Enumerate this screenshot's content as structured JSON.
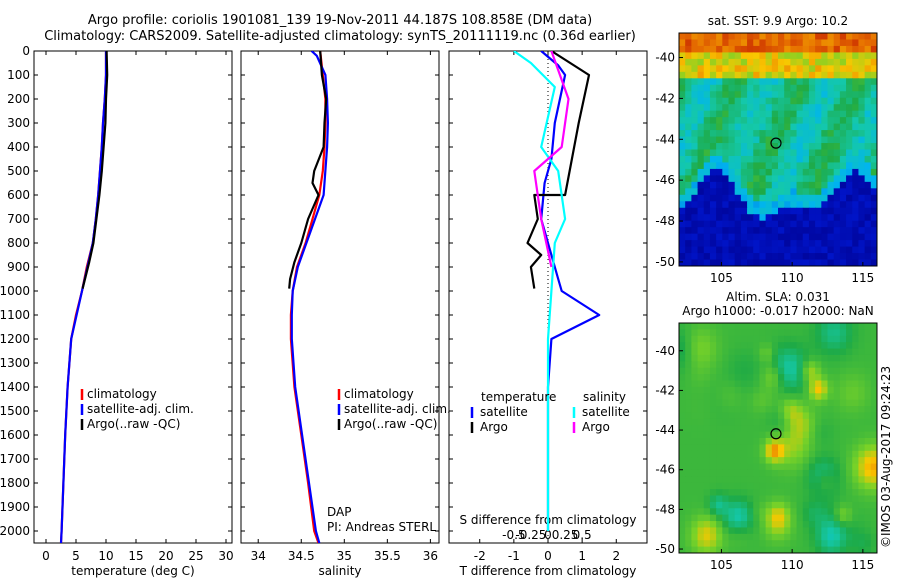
{
  "title_line1": "Argo profile: coriolis 1901081_139 19-Nov-2011 44.187S 108.858E (DM data)",
  "title_line2": "Climatology: CARS2009. Satellite-adjusted climatology: synTS_20111119.nc (0.36d earlier)",
  "timestamp": "©IMOS 03-Aug-2017 09:24:23",
  "colors": {
    "climatology": "#ff0000",
    "satellite": "#0000ff",
    "argo": "#000000",
    "sal_satellite": "#00ffff",
    "sal_argo": "#ff00ff"
  },
  "chart_data": [
    {
      "type": "line",
      "xlabel": "temperature (deg C)",
      "xlim": [
        -2,
        31
      ],
      "xticks": [
        0,
        5,
        10,
        15,
        20,
        25,
        30
      ],
      "ylim": [
        2050,
        0
      ],
      "yticks": [
        0,
        100,
        200,
        300,
        400,
        500,
        600,
        700,
        800,
        900,
        1000,
        1100,
        1200,
        1300,
        1400,
        1500,
        1600,
        1700,
        1800,
        1900,
        2000
      ],
      "legend": [
        "climatology",
        "satellite-adj. clim.",
        "Argo(..raw -QC)"
      ],
      "series": [
        {
          "name": "climatology",
          "color": "#ff0000",
          "x": [
            10.0,
            10.0,
            9.8,
            9.5,
            9.3,
            9.0,
            8.7,
            8.3,
            7.8,
            6.8,
            6.0,
            5.0,
            4.2,
            3.6,
            3.2,
            2.9,
            2.6,
            2.5
          ],
          "y": [
            0,
            100,
            200,
            300,
            400,
            500,
            600,
            700,
            800,
            900,
            1000,
            1100,
            1200,
            1400,
            1600,
            1800,
            2000,
            2050
          ]
        },
        {
          "name": "satellite-adj. clim.",
          "color": "#0000ff",
          "x": [
            10.0,
            10.0,
            9.8,
            9.5,
            9.3,
            9.0,
            8.7,
            8.3,
            7.8,
            6.9,
            6.0,
            5.1,
            4.2,
            3.6,
            3.2,
            2.9,
            2.6,
            2.5
          ],
          "y": [
            0,
            100,
            200,
            300,
            400,
            500,
            600,
            700,
            800,
            900,
            1000,
            1100,
            1200,
            1400,
            1600,
            1800,
            2000,
            2050
          ]
        },
        {
          "name": "Argo(..raw -QC)",
          "color": "#000000",
          "x": [
            10.1,
            10.2,
            10.0,
            9.9,
            9.6,
            9.3,
            8.9,
            8.4,
            7.9,
            7.2,
            6.6,
            6.1
          ],
          "y": [
            0,
            100,
            200,
            300,
            400,
            500,
            600,
            700,
            800,
            880,
            940,
            990
          ]
        }
      ]
    },
    {
      "type": "line",
      "xlabel": "salinity",
      "xlim": [
        33.8,
        36.1
      ],
      "xticks": [
        34,
        34.5,
        35,
        35.5,
        36
      ],
      "ylim": [
        2050,
        0
      ],
      "legend": [
        "climatology",
        "satellite-adj. clim.",
        "Argo(..raw -QC)"
      ],
      "annotation": [
        "DAP",
        "PI: Andreas STERL"
      ],
      "series": [
        {
          "name": "climatology",
          "color": "#ff0000",
          "x": [
            34.72,
            34.75,
            34.78,
            34.78,
            34.77,
            34.75,
            34.71,
            34.63,
            34.55,
            34.45,
            34.4,
            34.38,
            34.38,
            34.42,
            34.5,
            34.58,
            34.65,
            34.7
          ],
          "y": [
            0,
            100,
            200,
            300,
            400,
            500,
            600,
            700,
            800,
            900,
            1000,
            1100,
            1200,
            1400,
            1600,
            1800,
            2000,
            2050
          ]
        },
        {
          "name": "satellite-adj. clim.",
          "color": "#0000ff",
          "x": [
            34.62,
            34.68,
            34.78,
            34.8,
            34.81,
            34.8,
            34.76,
            34.66,
            34.56,
            34.46,
            34.4,
            34.39,
            34.39,
            34.43,
            34.51,
            34.59,
            34.67,
            34.71
          ],
          "y": [
            0,
            20,
            100,
            200,
            300,
            400,
            600,
            700,
            800,
            900,
            1000,
            1100,
            1200,
            1400,
            1600,
            1800,
            2000,
            2050
          ]
        },
        {
          "name": "Argo(..raw -QC)",
          "color": "#000000",
          "x": [
            34.72,
            34.74,
            34.79,
            34.77,
            34.76,
            34.65,
            34.63,
            34.7,
            34.58,
            34.5,
            34.42,
            34.37,
            34.36
          ],
          "y": [
            0,
            100,
            200,
            300,
            400,
            500,
            550,
            600,
            700,
            800,
            880,
            950,
            990
          ]
        }
      ]
    },
    {
      "type": "line",
      "xlabel": "T difference from climatology",
      "xlabel2": "S difference from climatology",
      "xlim": [
        -2.9,
        2.9
      ],
      "xticks": [
        -2,
        -1,
        0,
        1,
        2
      ],
      "xticks2_labels": [
        "-0.5",
        "-0.25",
        "0",
        "0.25",
        "0.5"
      ],
      "ylim": [
        2050,
        0
      ],
      "legend_headers": [
        "temperature",
        "salinity"
      ],
      "legend": [
        "satellite",
        "Argo",
        "satellite",
        "Argo"
      ],
      "series": [
        {
          "name": "satellite",
          "color": "#0000ff",
          "x": [
            -0.2,
            0.3,
            0.5,
            0.2,
            0.1,
            -0.1,
            -0.2,
            0.0,
            0.2,
            0.3,
            0.4,
            1.5,
            0.1,
            0.0,
            0.0,
            0.0,
            0.0
          ],
          "y": [
            0,
            60,
            100,
            300,
            450,
            550,
            700,
            800,
            900,
            950,
            1000,
            1100,
            1200,
            1400,
            1600,
            1800,
            2000
          ]
        },
        {
          "name": "Argo",
          "color": "#000000",
          "x": [
            0.1,
            1.2,
            0.9,
            0.5,
            -0.4,
            -0.3,
            -0.6,
            -0.2,
            -0.5,
            -0.4
          ],
          "y": [
            0,
            100,
            300,
            600,
            600,
            700,
            800,
            850,
            900,
            990
          ]
        },
        {
          "name": "satellite",
          "color": "#00ffff",
          "x": [
            -1.0,
            -0.5,
            0.2,
            -0.2,
            0.3,
            0.5,
            0.2,
            0.1,
            0.0,
            0.0,
            0.0
          ],
          "y": [
            0,
            50,
            150,
            400,
            500,
            700,
            800,
            1000,
            1200,
            1600,
            2000
          ]
        },
        {
          "name": "Argo",
          "color": "#ff00ff",
          "x": [
            0.1,
            0.6,
            0.4,
            -0.4,
            -0.2,
            0.1
          ],
          "y": [
            0,
            200,
            400,
            500,
            700,
            900
          ]
        }
      ]
    }
  ],
  "maps": [
    {
      "title": [
        "sat. SST: 9.9 Argo: 10.2"
      ],
      "xticks": [
        "105",
        "110",
        "115"
      ],
      "yticks": [
        "-40",
        "-42",
        "-44",
        "-46",
        "-48",
        "-50"
      ]
    },
    {
      "title": [
        "Altim. SLA: 0.031",
        "Argo h1000: -0.017 h2000: NaN"
      ],
      "xticks": [
        "105",
        "110",
        "115"
      ],
      "yticks": [
        "-40",
        "-42",
        "-44",
        "-46",
        "-48",
        "-50"
      ]
    }
  ]
}
